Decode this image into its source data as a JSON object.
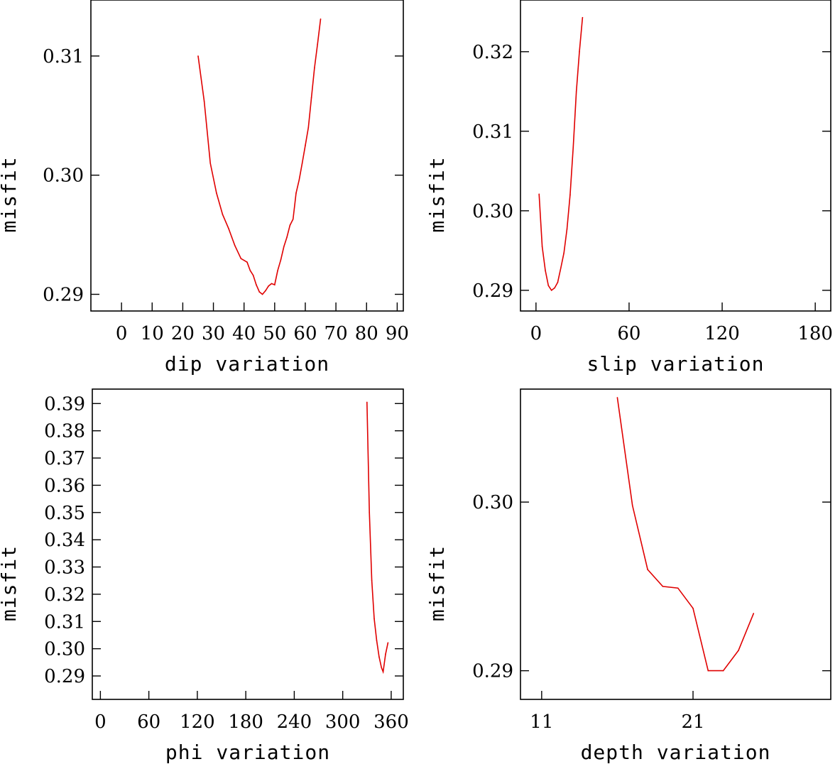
{
  "chart_data": [
    {
      "type": "line",
      "xlabel": "dip    variation",
      "ylabel": "misfit",
      "xlim": [
        -10,
        92
      ],
      "ylim": [
        0.2886,
        0.3147
      ],
      "xticks": [
        0,
        10,
        20,
        30,
        40,
        50,
        60,
        70,
        80,
        90
      ],
      "xtick_labels": [
        "0",
        "10",
        "20",
        "30",
        "40",
        "50",
        "60",
        "70",
        "80",
        "90"
      ],
      "yticks": [
        0.29,
        0.3,
        0.31
      ],
      "ytick_labels": [
        "0.29",
        "0.30",
        "0.31"
      ],
      "line_color": "#e00000",
      "series": [
        {
          "name": "dip",
          "x": [
            25,
            27,
            29,
            31,
            33,
            35,
            36,
            37,
            39,
            41,
            42,
            43,
            44,
            45,
            46,
            47,
            48,
            49,
            50,
            51,
            52,
            53,
            54,
            55,
            56,
            57,
            58,
            59,
            60,
            61,
            62,
            63,
            64,
            65
          ],
          "y": [
            0.31,
            0.3062,
            0.301,
            0.2985,
            0.2967,
            0.2955,
            0.2948,
            0.2941,
            0.293,
            0.2927,
            0.292,
            0.2916,
            0.2908,
            0.2902,
            0.29,
            0.2903,
            0.2907,
            0.2909,
            0.2908,
            0.292,
            0.2929,
            0.294,
            0.2948,
            0.2958,
            0.2963,
            0.2985,
            0.2996,
            0.301,
            0.3025,
            0.304,
            0.3065,
            0.309,
            0.311,
            0.3131
          ]
        }
      ]
    },
    {
      "type": "line",
      "xlabel": "slip   variation",
      "ylabel": "misfit",
      "xlim": [
        -10,
        190
      ],
      "ylim": [
        0.2874,
        0.3265
      ],
      "xticks": [
        0,
        60,
        120,
        180
      ],
      "xtick_labels": [
        "0",
        "60",
        "120",
        "180"
      ],
      "yticks": [
        0.29,
        0.3,
        0.31,
        0.32
      ],
      "ytick_labels": [
        "0.29",
        "0.30",
        "0.31",
        "0.32"
      ],
      "line_color": "#e00000",
      "series": [
        {
          "name": "slip",
          "x": [
            2,
            4,
            6,
            8,
            10,
            12,
            14,
            16,
            18,
            20,
            22,
            24,
            26,
            28,
            30
          ],
          "y": [
            0.3021,
            0.2955,
            0.2925,
            0.2906,
            0.29,
            0.2903,
            0.291,
            0.2928,
            0.2947,
            0.2977,
            0.302,
            0.308,
            0.315,
            0.32,
            0.3243
          ]
        }
      ]
    },
    {
      "type": "line",
      "xlabel": "phi    variation",
      "ylabel": "misfit",
      "xlim": [
        -10,
        375
      ],
      "ylim": [
        0.2814,
        0.3953
      ],
      "xticks": [
        0,
        60,
        120,
        180,
        240,
        300,
        360
      ],
      "xtick_labels": [
        "0",
        "60",
        "120",
        "180",
        "240",
        "300",
        "360"
      ],
      "yticks": [
        0.29,
        0.3,
        0.31,
        0.32,
        0.33,
        0.34,
        0.35,
        0.36,
        0.37,
        0.38,
        0.39
      ],
      "ytick_labels": [
        "0.29",
        "0.30",
        "0.31",
        "0.32",
        "0.33",
        "0.34",
        "0.35",
        "0.36",
        "0.37",
        "0.38",
        "0.39"
      ],
      "line_color": "#e00000",
      "series": [
        {
          "name": "phi",
          "x": [
            330,
            333,
            336,
            339,
            342,
            345,
            348,
            350,
            353,
            356
          ],
          "y": [
            0.3905,
            0.35,
            0.325,
            0.311,
            0.303,
            0.297,
            0.293,
            0.2915,
            0.298,
            0.3022
          ]
        }
      ]
    },
    {
      "type": "line",
      "xlabel": "depth  variation",
      "ylabel": "misfit",
      "xlim": [
        9.6,
        30.1
      ],
      "ylim": [
        0.2883,
        0.3067
      ],
      "xticks": [
        11,
        21
      ],
      "xtick_labels": [
        "11",
        "21"
      ],
      "yticks": [
        0.29,
        0.3
      ],
      "ytick_labels": [
        "0.29",
        "0.30"
      ],
      "line_color": "#e00000",
      "series": [
        {
          "name": "depth",
          "x": [
            16,
            17,
            18,
            19,
            20,
            21,
            22,
            23,
            24,
            25
          ],
          "y": [
            0.3062,
            0.2998,
            0.296,
            0.295,
            0.2949,
            0.2937,
            0.29,
            0.29,
            0.2912,
            0.2934
          ]
        }
      ]
    }
  ]
}
